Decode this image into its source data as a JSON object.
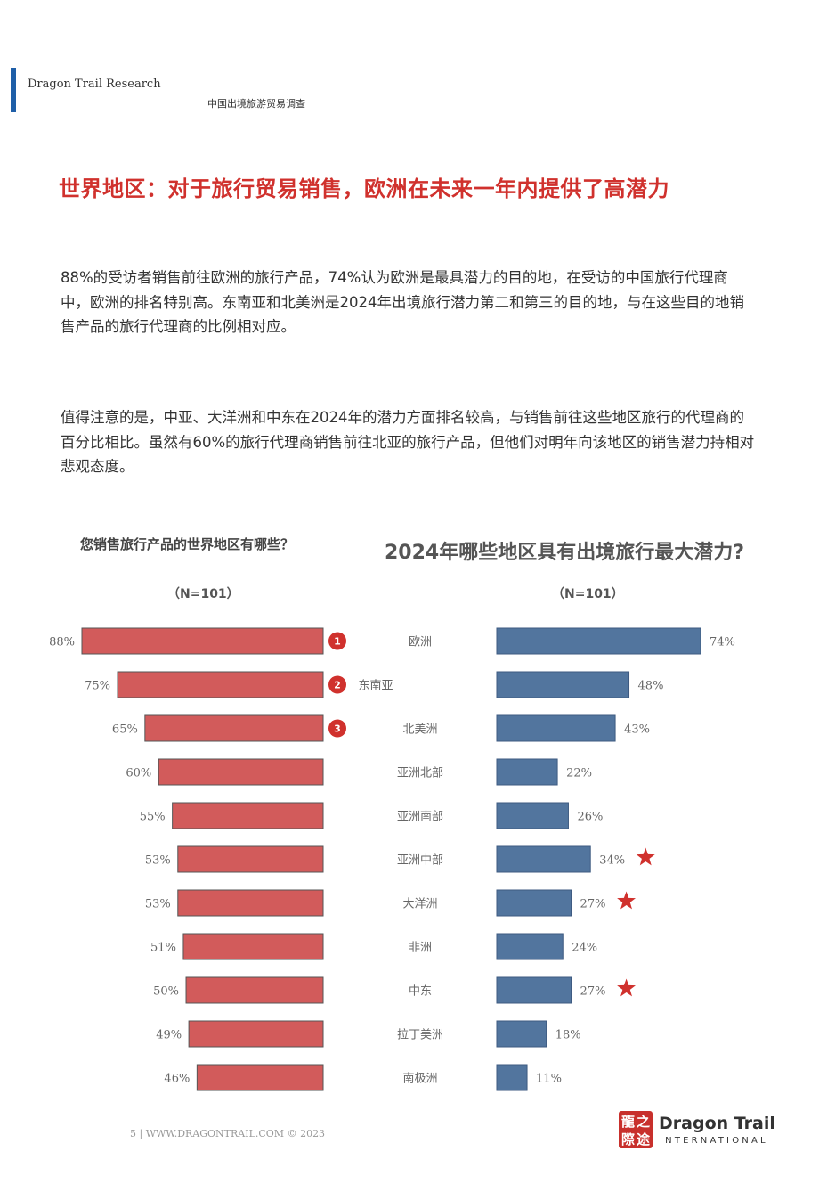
{
  "header": {
    "brand": "Dragon Trail Research",
    "subtitle": "中国出境旅游贸易调查"
  },
  "headline": "世界地区：对于旅行贸易销售，欧洲在未来一年内提供了高潜力",
  "paragraphs": [
    "88%的受访者销售前往欧洲的旅行产品，74%认为欧洲是最具潜力的目的地，在受访的中国旅行代理商中，欧洲的排名特别高。东南亚和北美洲是2024年出境旅行潜力第二和第三的目的地，与在这些目的地销售产品的旅行代理商的比例相对应。",
    "值得注意的是，中亚、大洋洲和中东在2024年的潜力方面排名较高，与销售前往这些地区旅行的代理商的百分比相比。虽然有60%的旅行代理商销售前往北亚的旅行产品，但他们对明年向该地区的销售潜力持相对悲观态度。"
  ],
  "chart_data": [
    {
      "type": "bar",
      "orientation": "horizontal",
      "title": "您销售旅行产品的世界地区有哪些？",
      "sample": "（N=101）",
      "value_labels": [
        "88%",
        "75%",
        "65%",
        "60%",
        "55%",
        "53%",
        "53%",
        "51%",
        "50%",
        "49%",
        "46%"
      ],
      "values": [
        88,
        75,
        65,
        60,
        55,
        53,
        53,
        51,
        50,
        49,
        46
      ],
      "rank_badges": [
        "1",
        "2",
        "3"
      ],
      "color": "#d25b5b",
      "xlim": [
        0,
        100
      ]
    },
    {
      "type": "bar",
      "orientation": "horizontal",
      "title": "2024年哪些地区具有出境旅行最大潜力?",
      "sample": "（N=101）",
      "categories": [
        "欧洲",
        "东南亚",
        "北美洲",
        "亚洲北部",
        "亚洲南部",
        "亚洲中部",
        "大洋洲",
        "非洲",
        "中东",
        "拉丁美洲",
        "南极洲"
      ],
      "value_labels": [
        "74%",
        "48%",
        "43%",
        "22%",
        "26%",
        "34%",
        "27%",
        "24%",
        "27%",
        "18%",
        "11%"
      ],
      "values": [
        74,
        48,
        43,
        22,
        26,
        34,
        27,
        24,
        27,
        18,
        11
      ],
      "starred": [
        "亚洲中部",
        "大洋洲",
        "中东"
      ],
      "color": "#52759e",
      "xlim": [
        0,
        100
      ]
    }
  ],
  "footer": {
    "text": "5 | WWW.DRAGONTRAIL.COM © 2023",
    "logo_chars": [
      "龍",
      "之",
      "際",
      "途"
    ],
    "logo_name": "Dragon Trail",
    "logo_sub": "INTERNATIONAL"
  },
  "colors": {
    "accent": "#1f5fa8",
    "headline": "#d0312d",
    "left_bars": "#d25b5b",
    "right_bars": "#52759e",
    "star": "#d0312d"
  }
}
